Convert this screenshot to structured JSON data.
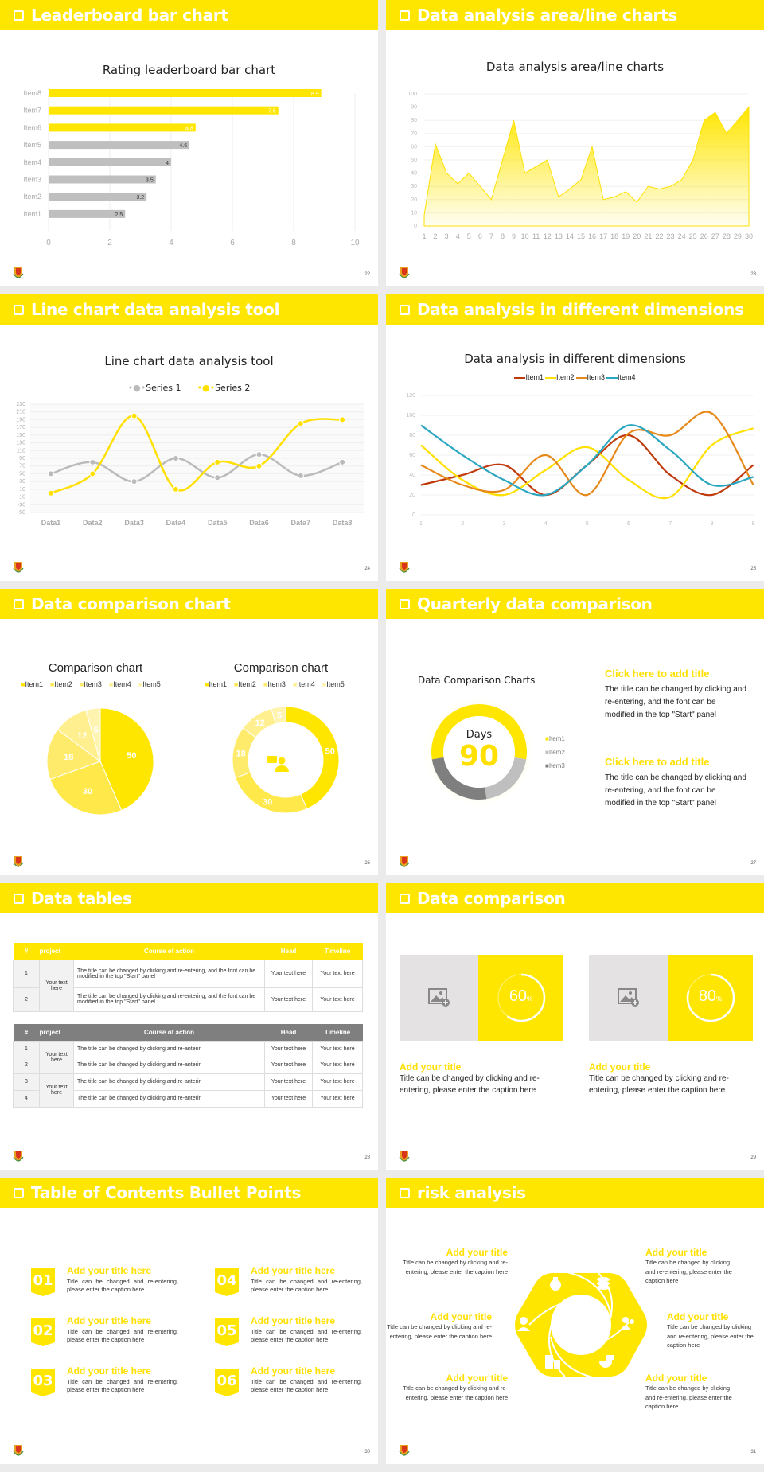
{
  "colors": {
    "accent": "#ffe600",
    "gray_bar": "#bfbfbf",
    "dark_gray": "#7f7f7f",
    "item1_line": "#c0390b",
    "item2_line": "#ffe000",
    "item3_line": "#e6891a",
    "item4_line": "#2aa6c0"
  },
  "slides": [
    {
      "title": "Leaderboard bar chart",
      "page": "22"
    },
    {
      "title": "Data analysis area/line charts",
      "page": "23"
    },
    {
      "title": "Line chart data analysis tool",
      "page": "24"
    },
    {
      "title": "Data analysis in different dimensions",
      "page": "25"
    },
    {
      "title": "Data comparison chart",
      "page": "26"
    },
    {
      "title": "Quarterly data comparison",
      "page": "27"
    },
    {
      "title": "Data tables",
      "page": "28"
    },
    {
      "title": "Data comparison",
      "page": "29"
    },
    {
      "title": "Table of Contents Bullet Points",
      "page": "30"
    },
    {
      "title": "risk analysis",
      "page": "31"
    }
  ],
  "chart_data": [
    {
      "type": "bar",
      "title": "Rating leaderboard bar chart",
      "orientation": "horizontal",
      "categories": [
        "Item1",
        "Item2",
        "Item3",
        "Item4",
        "Item5",
        "Item6",
        "Item7",
        "Item8"
      ],
      "values": [
        2.5,
        3.2,
        3.5,
        4,
        4.6,
        4.8,
        7.5,
        8.9
      ],
      "highlighted": [
        "Item6",
        "Item7",
        "Item8"
      ],
      "xticks": [
        0,
        2,
        4,
        6,
        8,
        10
      ],
      "xlim": [
        0,
        10
      ],
      "grid": true
    },
    {
      "type": "area",
      "title": "Data analysis area/line charts",
      "x": [
        1,
        2,
        3,
        4,
        5,
        6,
        7,
        8,
        9,
        10,
        11,
        12,
        13,
        14,
        15,
        16,
        17,
        18,
        19,
        20,
        21,
        22,
        23,
        24,
        25,
        26,
        27,
        28,
        29,
        30
      ],
      "values": [
        8,
        62,
        40,
        32,
        40,
        30,
        20,
        50,
        80,
        40,
        45,
        50,
        22,
        28,
        35,
        60,
        20,
        22,
        26,
        18,
        30,
        28,
        30,
        35,
        50,
        80,
        86,
        70,
        80,
        90
      ],
      "yticks": [
        0,
        10,
        20,
        30,
        40,
        50,
        60,
        70,
        80,
        90,
        100
      ],
      "ylim": [
        0,
        100
      ]
    },
    {
      "type": "line",
      "title": "Line chart data analysis tool",
      "categories": [
        "Data1",
        "Data2",
        "Data3",
        "Data4",
        "Data5",
        "Data6",
        "Data7",
        "Data8"
      ],
      "series": [
        {
          "name": "Series 1",
          "values": [
            50,
            80,
            30,
            90,
            40,
            100,
            45,
            80
          ]
        },
        {
          "name": "Series 2",
          "values": [
            0,
            50,
            200,
            10,
            80,
            70,
            180,
            190
          ]
        }
      ],
      "yticks": [
        -50,
        -30,
        -10,
        10,
        30,
        50,
        70,
        90,
        110,
        130,
        150,
        170,
        190,
        210,
        230
      ],
      "ylim": [
        -50,
        230
      ],
      "legend_position": "top",
      "smooth": true
    },
    {
      "type": "line",
      "title": "Data analysis in different dimensions",
      "categories": [
        "1",
        "2",
        "3",
        "4",
        "5",
        "6",
        "7",
        "8",
        "9"
      ],
      "series": [
        {
          "name": "Item1",
          "values": [
            30,
            40,
            50,
            20,
            50,
            80,
            40,
            20,
            50
          ]
        },
        {
          "name": "Item2",
          "values": [
            70,
            35,
            20,
            45,
            68,
            35,
            18,
            70,
            87
          ]
        },
        {
          "name": "Item3",
          "values": [
            50,
            30,
            25,
            60,
            20,
            82,
            80,
            102,
            30
          ]
        },
        {
          "name": "Item4",
          "values": [
            90,
            60,
            35,
            20,
            50,
            90,
            65,
            30,
            38
          ]
        }
      ],
      "yticks": [
        0,
        20,
        40,
        60,
        80,
        100,
        120
      ],
      "ylim": [
        0,
        120
      ],
      "legend_position": "top",
      "smooth": true
    },
    {
      "type": "pie",
      "title": "Comparison chart",
      "categories": [
        "Item1",
        "Item2",
        "Item3",
        "Item4",
        "Item5"
      ],
      "values": [
        50,
        30,
        18,
        12,
        5
      ]
    },
    {
      "type": "pie",
      "subtype": "donut",
      "title": "Comparison chart",
      "categories": [
        "Item1",
        "Item2",
        "Item3",
        "Item4",
        "Item5"
      ],
      "values": [
        50,
        30,
        18,
        12,
        5
      ]
    },
    {
      "type": "pie",
      "subtype": "donut",
      "title": "Data Comparison Charts",
      "categories": [
        "Item1",
        "Item2",
        "Item3"
      ],
      "values": [
        55,
        20,
        25
      ],
      "center_label": "Days",
      "center_value": "90"
    }
  ],
  "bar_slide": {
    "title": "Rating leaderboard bar chart",
    "labels": [
      "Item8",
      "Item7",
      "Item6",
      "Item5",
      "Item4",
      "Item3",
      "Item2",
      "Item1"
    ],
    "values": [
      "8.9",
      "7.5",
      "4.8",
      "4.6",
      "4",
      "3.5",
      "3.2",
      "2.5"
    ],
    "xticks": [
      "0",
      "2",
      "4",
      "6",
      "8",
      "10"
    ]
  },
  "area_slide": {
    "title": "Data analysis area/line charts"
  },
  "line_slide": {
    "title": "Line chart data analysis tool",
    "legend": [
      "Series 1",
      "Series 2"
    ]
  },
  "dims_slide": {
    "title": "Data analysis in different dimensions",
    "legend": [
      "Item1",
      "Item2",
      "Item3",
      "Item4"
    ]
  },
  "pie_slide": {
    "left_title": "Comparison chart",
    "right_title": "Comparison chart",
    "legend": [
      "Item1",
      "Item2",
      "Item3",
      "Item4",
      "Item5"
    ],
    "labels": [
      "50",
      "30",
      "18",
      "12",
      "5"
    ]
  },
  "quarterly_slide": {
    "chart_title": "Data Comparison Charts",
    "center_label": "Days",
    "center_value": "90",
    "legend": [
      "Item1",
      "Item2",
      "Item3"
    ],
    "blocks": [
      {
        "title": "Click here to add title",
        "body": "The title can be changed by clicking and re-entering, and the font can be modified in the top \"Start\" panel"
      },
      {
        "title": "Click here to add title",
        "body": "The title can be changed by clicking and re-entering, and the font can be modified in the top \"Start\" panel"
      }
    ]
  },
  "tables_slide": {
    "headers": [
      "#",
      "project",
      "Course of action",
      "Head",
      "Timeline"
    ],
    "table1": {
      "project": "Your text here",
      "rows": [
        {
          "num": "1",
          "action": "The title can be changed by clicking and re-entering, and the font can be modified in the top \"Start\" panel",
          "head": "Your text here",
          "timeline": "Your text here"
        },
        {
          "num": "2",
          "action": "The title can be changed by clicking and re-entering, and the font can be modified in the top \"Start\" panel",
          "head": "Your text here",
          "timeline": "Your text here"
        }
      ]
    },
    "table2": {
      "projects": [
        "Your text here",
        "Your text here"
      ],
      "rows": [
        {
          "num": "1",
          "action": "The title can be changed by clicking and re-anterin",
          "head": "Your text here",
          "timeline": "Your text here"
        },
        {
          "num": "2",
          "action": "The title can be changed by clicking and re-anterin",
          "head": "Your text here",
          "timeline": "Your text here"
        },
        {
          "num": "3",
          "action": "The title can be changed by clicking and re-anterin",
          "head": "Your text here",
          "timeline": "Your text here"
        },
        {
          "num": "4",
          "action": "The title can be changed by clicking and re-anterin",
          "head": "Your text here",
          "timeline": "Your text here"
        }
      ]
    }
  },
  "comparison_slide": {
    "cards": [
      {
        "percent": "60",
        "unit": "%",
        "title": "Add your title",
        "body": "Title can be changed by clicking and re-entering, please enter the caption here"
      },
      {
        "percent": "80",
        "unit": "%",
        "title": "Add your title",
        "body": "Title can be changed by clicking and re-entering, please enter the caption here"
      }
    ]
  },
  "toc_slide": {
    "items": [
      {
        "num": "01",
        "title": "Add your title here",
        "body": "Title can be changed and re-entering, please enter the caption here"
      },
      {
        "num": "02",
        "title": "Add your title here",
        "body": "Title can be changed and re-entering, please enter the caption here"
      },
      {
        "num": "03",
        "title": "Add your title here",
        "body": "Title can be changed and re-entering, please enter the caption here"
      },
      {
        "num": "04",
        "title": "Add your title here",
        "body": "Title can be changed and re-entering, please enter the caption here"
      },
      {
        "num": "05",
        "title": "Add your title here",
        "body": "Title can be changed and re-entering, please enter the caption here"
      },
      {
        "num": "06",
        "title": "Add your title here",
        "body": "Title can be changed and re-entering, please enter the caption here"
      }
    ]
  },
  "risk_slide": {
    "items": [
      {
        "title": "Add your title",
        "body": "Title can be changed by clicking and re-entering, please enter the caption here",
        "icon": "money-bag-icon"
      },
      {
        "title": "Add your title",
        "body": "Title can be changed by clicking and re-entering, please enter the caption here",
        "icon": "user-yen-icon"
      },
      {
        "title": "Add your title",
        "body": "Title can be changed by clicking and re-entering, please enter the caption here",
        "icon": "building-icon"
      },
      {
        "title": "Add your title",
        "body": "Title can be changed by clicking and re-entering, please enter the caption here",
        "icon": "coins-icon"
      },
      {
        "title": "Add your title",
        "body": "Title can be changed by clicking and re-entering, please enter the caption here",
        "icon": "users-icon"
      },
      {
        "title": "Add your title",
        "body": "Title can be changed by clicking and re-entering, please enter the caption here",
        "icon": "pie-chart-icon"
      }
    ]
  }
}
